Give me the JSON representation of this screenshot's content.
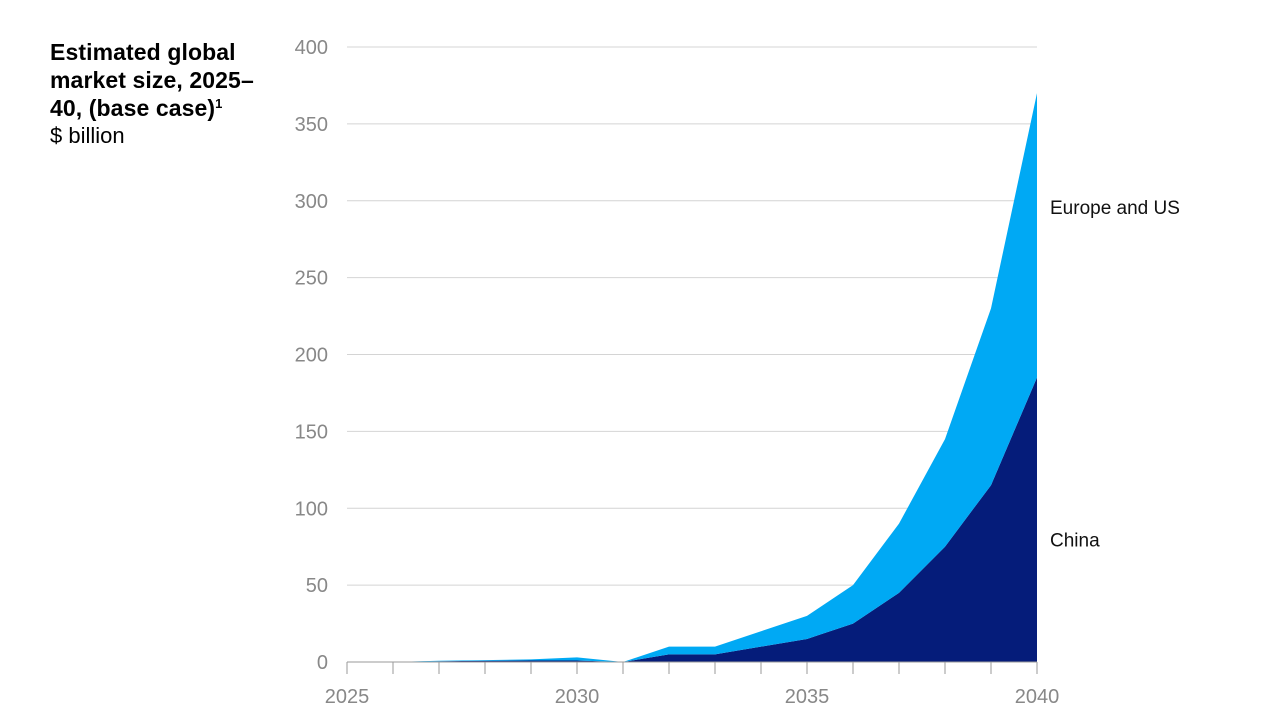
{
  "title": {
    "text": "Estimated global market size, 2025–40, (base case)",
    "footnote": "1",
    "unit": "$ billion"
  },
  "chart_data": {
    "type": "area",
    "stacked": true,
    "x": [
      2025,
      2026,
      2027,
      2028,
      2029,
      2030,
      2031,
      2032,
      2033,
      2034,
      2035,
      2036,
      2037,
      2038,
      2039,
      2040
    ],
    "x_ticks": [
      "2025",
      "2030",
      "2035",
      "2040"
    ],
    "xlim": [
      2025,
      2040
    ],
    "ylim": [
      0,
      400
    ],
    "y_ticks": [
      "0",
      "50",
      "100",
      "150",
      "200",
      "250",
      "300",
      "350",
      "400"
    ],
    "grid": "horizontal",
    "series": [
      {
        "name": "China",
        "color": "#051c7a",
        "values": [
          0,
          0,
          0.5,
          0.8,
          1,
          1,
          0,
          5,
          5,
          10,
          15,
          25,
          45,
          75,
          115,
          185
        ]
      },
      {
        "name": "Europe and US",
        "color": "#00a9f4",
        "values": [
          0,
          0,
          0.3,
          0.4,
          0.7,
          2,
          0,
          5,
          5,
          10,
          15,
          25,
          45,
          70,
          115,
          185
        ]
      }
    ]
  }
}
